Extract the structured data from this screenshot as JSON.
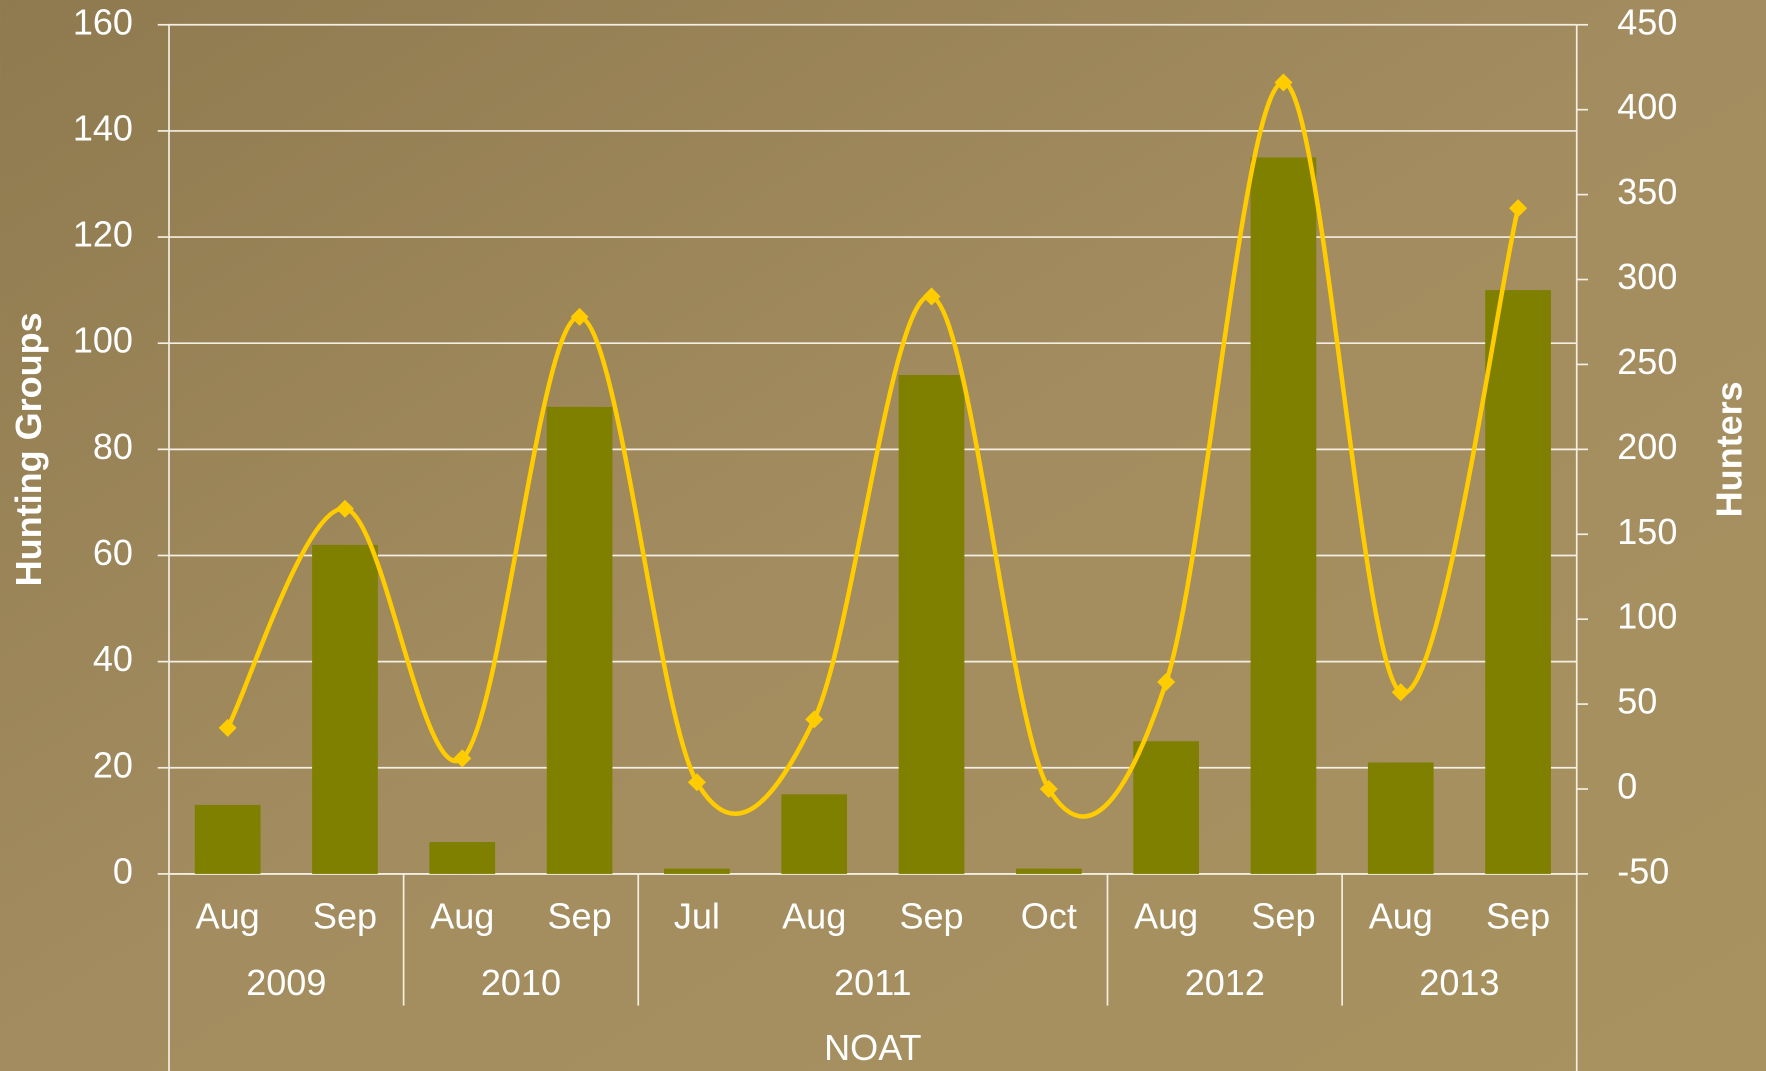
{
  "chart_data": {
    "type": "bar-line",
    "groups": [
      {
        "name": "2009",
        "categories": [
          "Aug",
          "Sep"
        ]
      },
      {
        "name": "2010",
        "categories": [
          "Aug",
          "Sep"
        ]
      },
      {
        "name": "2011",
        "categories": [
          "Jul",
          "Aug",
          "Sep",
          "Oct"
        ]
      },
      {
        "name": "2012",
        "categories": [
          "Aug",
          "Sep"
        ]
      },
      {
        "name": "2013",
        "categories": [
          "Aug",
          "Sep"
        ]
      }
    ],
    "x_label": "NOAT",
    "y_label": "Hunting Groups",
    "y2_label": "Hunters",
    "series": [
      {
        "type": "bar",
        "color": "#7f7f00",
        "values": [
          13,
          62,
          6,
          88,
          1,
          15,
          94,
          1,
          25,
          135,
          21,
          110
        ]
      },
      {
        "type": "line",
        "axis": "y2",
        "color": "#ffcc00",
        "smooth": true,
        "marker": "diamond",
        "values": [
          36,
          165,
          18,
          278,
          4,
          41,
          290,
          0,
          63,
          416,
          57,
          342
        ]
      }
    ],
    "ylim": [
      0,
      160
    ],
    "yticks": [
      0,
      20,
      40,
      60,
      80,
      100,
      120,
      140,
      160
    ],
    "y2lim": [
      -50,
      450
    ],
    "y2ticks": [
      -50,
      0,
      50,
      100,
      150,
      200,
      250,
      300,
      350,
      400,
      450
    ],
    "grid": true
  }
}
